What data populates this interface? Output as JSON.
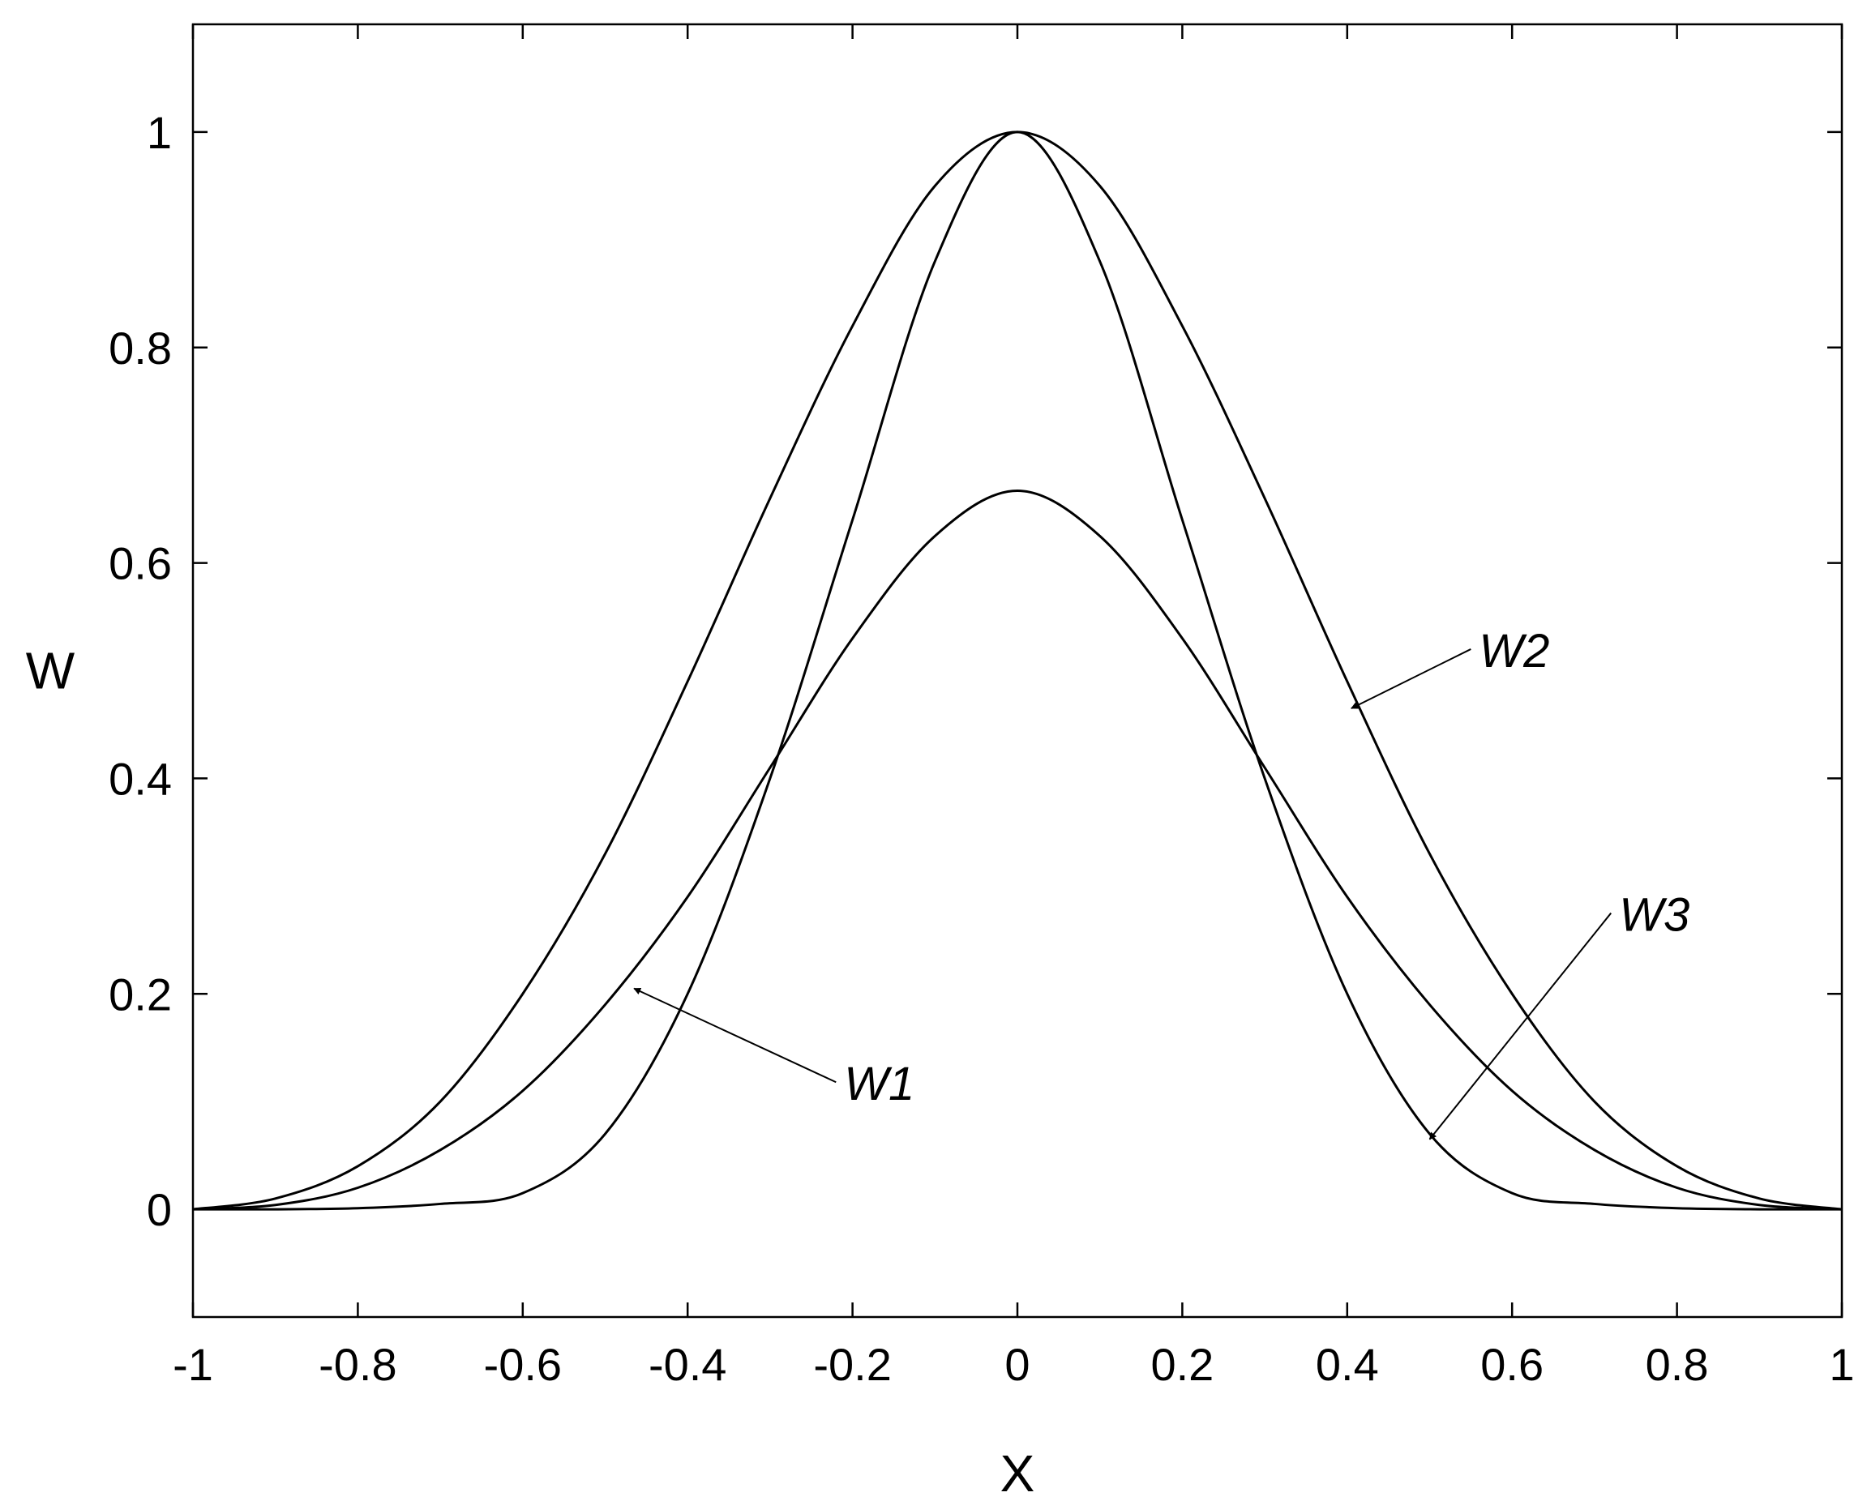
{
  "chart_data": {
    "type": "line",
    "title": "",
    "xlabel": "X",
    "ylabel": "W",
    "xlim": [
      -1,
      1
    ],
    "ylim": [
      -0.1,
      1.1
    ],
    "x_ticks": [
      -1,
      -0.8,
      -0.6,
      -0.4,
      -0.2,
      0,
      0.2,
      0.4,
      0.6,
      0.8,
      1
    ],
    "x_tick_labels": [
      "-1",
      "-0.8",
      "-0.6",
      "-0.4",
      "-0.2",
      "0",
      "0.2",
      "0.4",
      "0.6",
      "0.8",
      "1"
    ],
    "y_ticks": [
      0,
      0.2,
      0.4,
      0.6,
      0.8,
      1
    ],
    "y_tick_labels": [
      "0",
      "0.2",
      "0.4",
      "0.6",
      "0.8",
      "1"
    ],
    "grid": false,
    "line_color": "#000000",
    "series": [
      {
        "name": "W1",
        "x": [
          -1,
          -0.9,
          -0.8,
          -0.7,
          -0.6,
          -0.5,
          -0.4,
          -0.3,
          -0.2,
          -0.1,
          0,
          0.1,
          0.2,
          0.3,
          0.4,
          0.5,
          0.6,
          0.7,
          0.8,
          0.9,
          1
        ],
        "y": [
          0,
          0.004,
          0.02,
          0.055,
          0.11,
          0.19,
          0.29,
          0.41,
          0.53,
          0.625,
          0.667,
          0.625,
          0.53,
          0.41,
          0.29,
          0.19,
          0.11,
          0.055,
          0.02,
          0.004,
          0
        ]
      },
      {
        "name": "W2",
        "x": [
          -1,
          -0.9,
          -0.8,
          -0.7,
          -0.6,
          -0.5,
          -0.4,
          -0.3,
          -0.2,
          -0.1,
          0,
          0.1,
          0.2,
          0.3,
          0.4,
          0.5,
          0.6,
          0.7,
          0.8,
          0.9,
          1
        ],
        "y": [
          0,
          0.01,
          0.04,
          0.1,
          0.2,
          0.33,
          0.49,
          0.66,
          0.82,
          0.95,
          1,
          0.95,
          0.82,
          0.66,
          0.49,
          0.33,
          0.2,
          0.1,
          0.04,
          0.01,
          0
        ]
      },
      {
        "name": "W3",
        "x": [
          -1,
          -0.9,
          -0.8,
          -0.7,
          -0.6,
          -0.5,
          -0.4,
          -0.3,
          -0.2,
          -0.1,
          0,
          0.1,
          0.2,
          0.3,
          0.4,
          0.5,
          0.6,
          0.7,
          0.8,
          0.9,
          1
        ],
        "y": [
          0,
          0,
          0.001,
          0.005,
          0.015,
          0.07,
          0.2,
          0.4,
          0.64,
          0.88,
          1,
          0.88,
          0.64,
          0.4,
          0.2,
          0.07,
          0.015,
          0.005,
          0.001,
          0,
          0
        ]
      }
    ],
    "annotations": [
      {
        "series": "W1",
        "text": "W1",
        "point": [
          -0.465,
          0.205
        ],
        "text_at": [
          -0.22,
          0.118
        ]
      },
      {
        "series": "W2",
        "text": "W2",
        "point": [
          0.405,
          0.465
        ],
        "text_at": [
          0.55,
          0.52
        ]
      },
      {
        "series": "W3",
        "text": "W3",
        "point": [
          0.5,
          0.065
        ],
        "text_at": [
          0.72,
          0.275
        ]
      }
    ]
  }
}
